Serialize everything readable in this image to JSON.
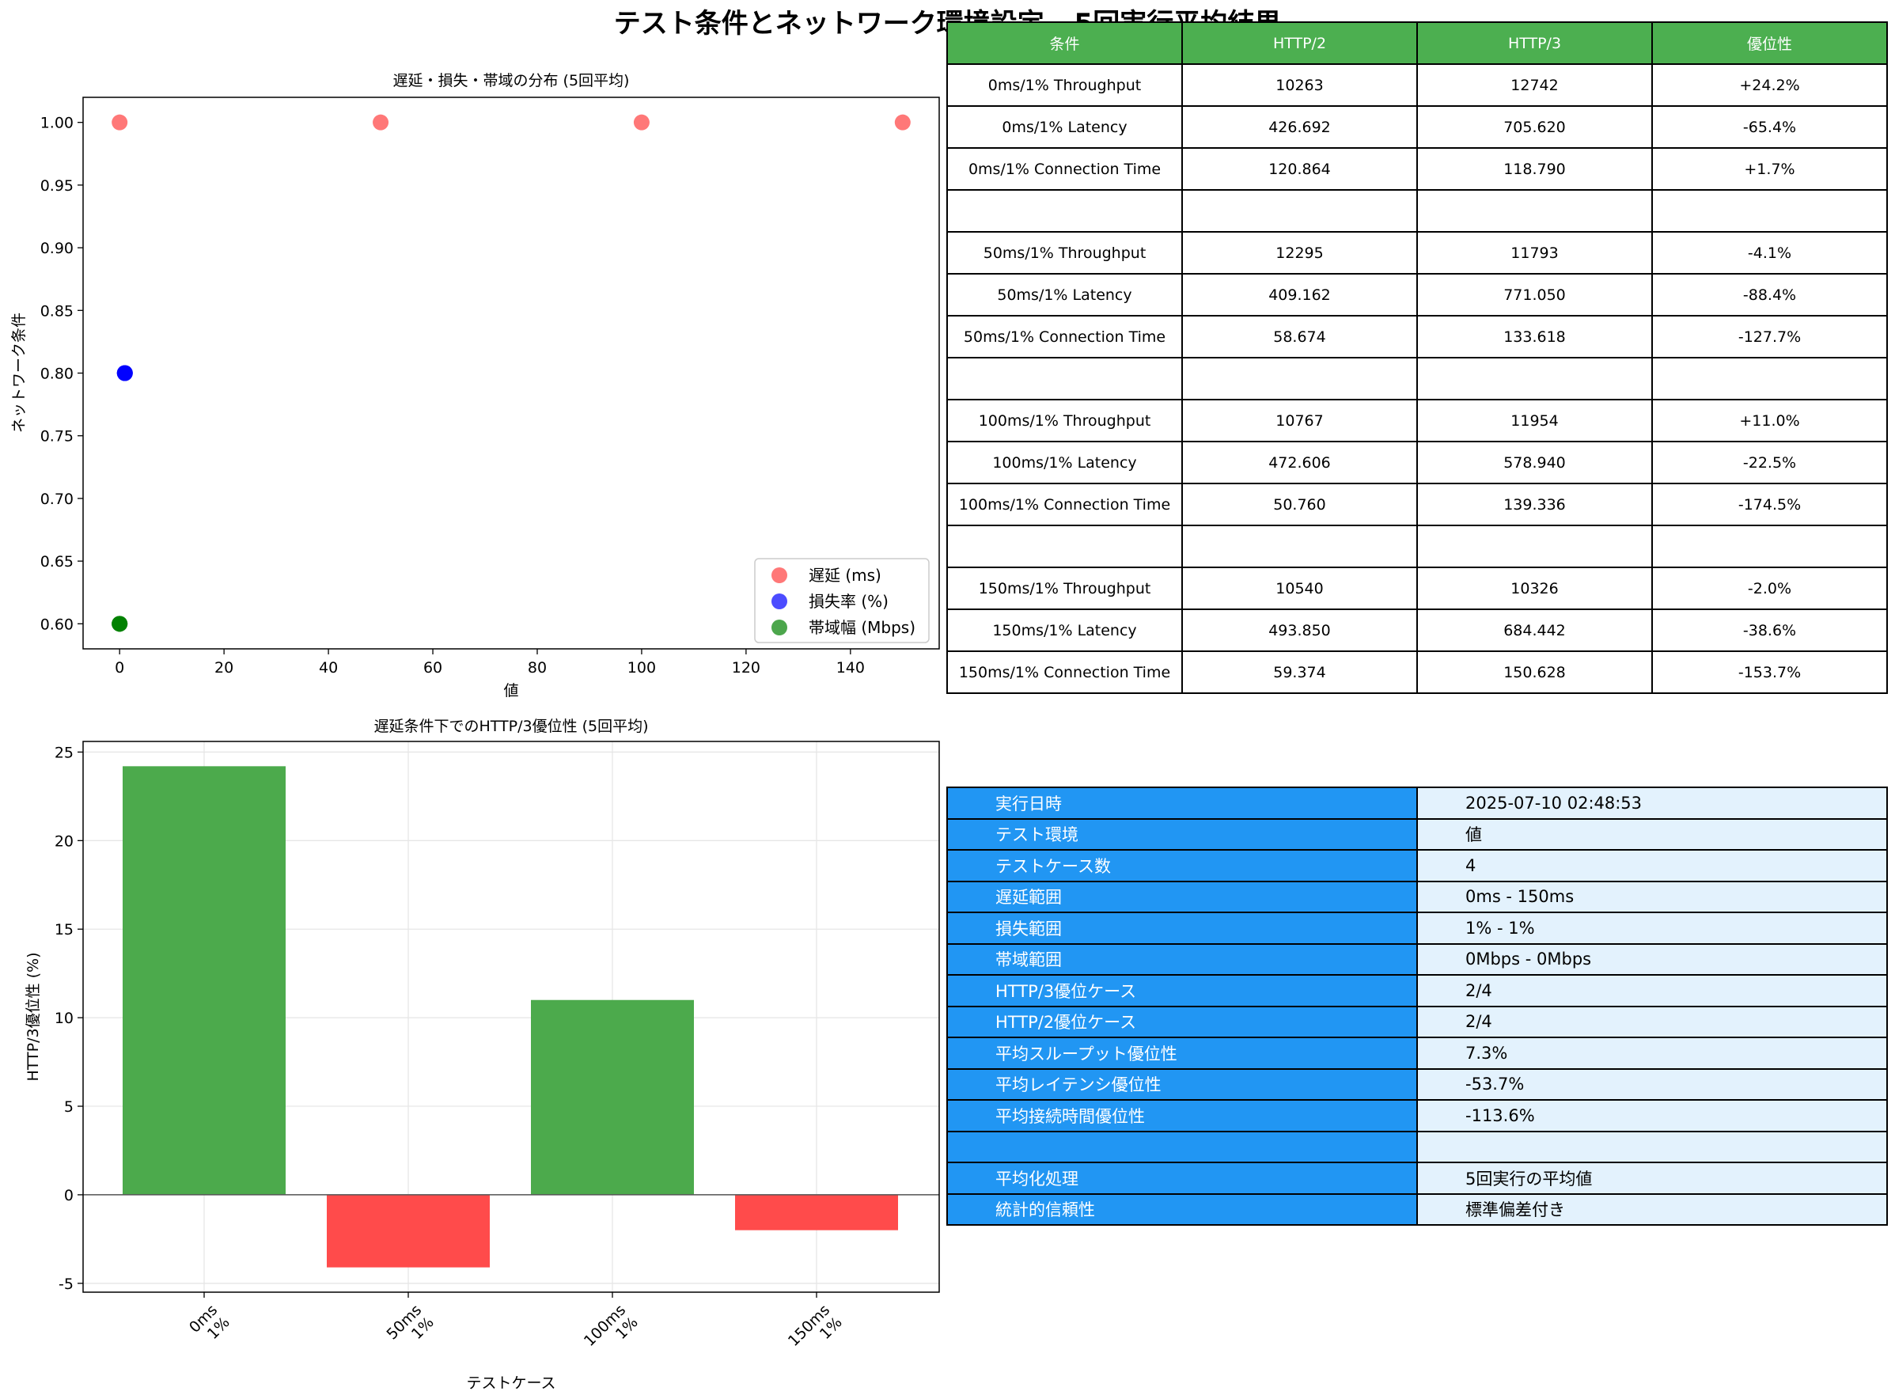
{
  "title": "テスト条件とネットワーク環境設定 - 5回実行平均結果",
  "colors": {
    "header_green": "#4caf50",
    "key_blue": "#2196f3",
    "value_light_blue": "#e3f2fd",
    "positive_bar": "#4caa4c",
    "negative_bar": "#ff4b4b",
    "delay_point": "#ff3f3f",
    "loss_point": "#0000ff",
    "bandwidth_point": "#008000"
  },
  "chart_data": [
    {
      "type": "scatter",
      "title": "遅延・損失・帯域の分布 (5回平均)",
      "xlabel": "値",
      "ylabel": "ネットワーク条件",
      "xlim": [
        -7,
        157
      ],
      "ylim": [
        0.58,
        1.02
      ],
      "xticks": [
        0,
        20,
        40,
        60,
        80,
        100,
        120,
        140
      ],
      "yticks": [
        0.6,
        0.65,
        0.7,
        0.75,
        0.8,
        0.85,
        0.9,
        0.95,
        1.0
      ],
      "legend_position": "bottom-right",
      "grid": false,
      "series": [
        {
          "name": "遅延 (ms)",
          "color": "#ff3f3f",
          "x": [
            0,
            50,
            100,
            150
          ],
          "y": [
            1.0,
            1.0,
            1.0,
            1.0
          ]
        },
        {
          "name": "損失率 (%)",
          "color": "#0000ff",
          "x": [
            1,
            1,
            1,
            1
          ],
          "y": [
            0.8,
            0.8,
            0.8,
            0.8
          ]
        },
        {
          "name": "帯域幅 (Mbps)",
          "color": "#008000",
          "x": [
            0,
            0,
            0,
            0
          ],
          "y": [
            0.6,
            0.6,
            0.6,
            0.6
          ]
        }
      ]
    },
    {
      "type": "bar",
      "title": "遅延条件下でのHTTP/3優位性 (5回平均)",
      "xlabel": "テストケース",
      "ylabel": "HTTP/3優位性 (%)",
      "ylim": [
        -5.5,
        25.6
      ],
      "yticks": [
        -5,
        0,
        5,
        10,
        15,
        20,
        25
      ],
      "grid": true,
      "categories": [
        [
          "0ms",
          "1%"
        ],
        [
          "50ms",
          "1%"
        ],
        [
          "100ms",
          "1%"
        ],
        [
          "150ms",
          "1%"
        ]
      ],
      "values": [
        24.2,
        -4.1,
        11.0,
        -2.0
      ]
    }
  ],
  "comparison_table": {
    "headers": [
      "条件",
      "HTTP/2",
      "HTTP/3",
      "優位性"
    ],
    "rows": [
      [
        "0ms/1% Throughput",
        "10263",
        "12742",
        "+24.2%"
      ],
      [
        "0ms/1% Latency",
        "426.692",
        "705.620",
        "-65.4%"
      ],
      [
        "0ms/1% Connection Time",
        "120.864",
        "118.790",
        "+1.7%"
      ],
      [
        "",
        "",
        "",
        ""
      ],
      [
        "50ms/1% Throughput",
        "12295",
        "11793",
        "-4.1%"
      ],
      [
        "50ms/1% Latency",
        "409.162",
        "771.050",
        "-88.4%"
      ],
      [
        "50ms/1% Connection Time",
        "58.674",
        "133.618",
        "-127.7%"
      ],
      [
        "",
        "",
        "",
        ""
      ],
      [
        "100ms/1% Throughput",
        "10767",
        "11954",
        "+11.0%"
      ],
      [
        "100ms/1% Latency",
        "472.606",
        "578.940",
        "-22.5%"
      ],
      [
        "100ms/1% Connection Time",
        "50.760",
        "139.336",
        "-174.5%"
      ],
      [
        "",
        "",
        "",
        ""
      ],
      [
        "150ms/1% Throughput",
        "10540",
        "10326",
        "-2.0%"
      ],
      [
        "150ms/1% Latency",
        "493.850",
        "684.442",
        "-38.6%"
      ],
      [
        "150ms/1% Connection Time",
        "59.374",
        "150.628",
        "-153.7%"
      ]
    ]
  },
  "summary_table": {
    "rows": [
      [
        "実行日時",
        "2025-07-10 02:48:53"
      ],
      [
        "テスト環境",
        "値"
      ],
      [
        "テストケース数",
        "4"
      ],
      [
        "遅延範囲",
        "0ms - 150ms"
      ],
      [
        "損失範囲",
        "1% - 1%"
      ],
      [
        "帯域範囲",
        "0Mbps - 0Mbps"
      ],
      [
        "HTTP/3優位ケース",
        "2/4"
      ],
      [
        "HTTP/2優位ケース",
        "2/4"
      ],
      [
        "平均スループット優位性",
        "7.3%"
      ],
      [
        "平均レイテンシ優位性",
        "-53.7%"
      ],
      [
        "平均接続時間優位性",
        "-113.6%"
      ],
      [
        "",
        ""
      ],
      [
        "平均化処理",
        "5回実行の平均値"
      ],
      [
        "統計的信頼性",
        "標準偏差付き"
      ]
    ]
  }
}
